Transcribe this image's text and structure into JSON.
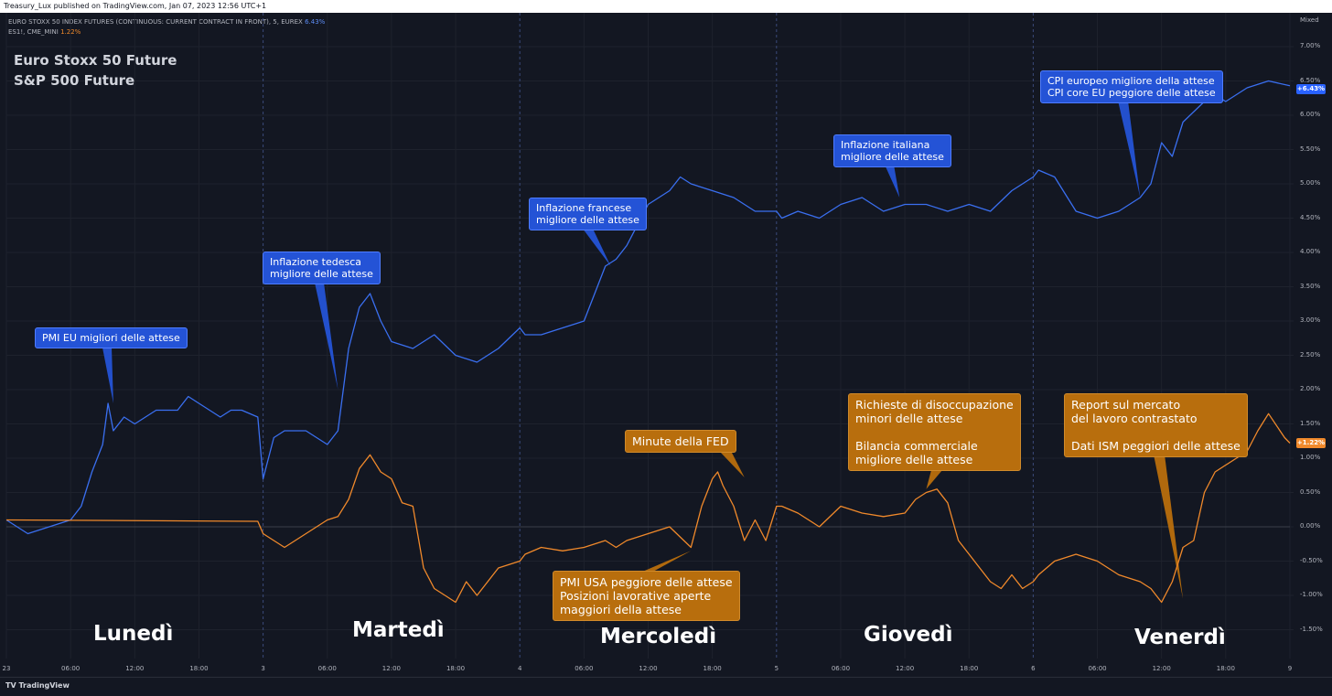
{
  "header": {
    "published_text": "Treasury_Lux published on TradingView.com, Jan 07, 2023 12:56 UTC+1"
  },
  "legend": {
    "line1_label": "EURO STOXX 50 INDEX FUTURES (CONTINUOUS: CURRENT CONTRACT IN FRONT), 5, EUREX",
    "line1_value": "6.43%",
    "line2_label": "ES1!, CME_MINI",
    "line2_value": "1.22%"
  },
  "titles": {
    "blue": "Euro Stoxx 50 Future",
    "orange": "S&P 500 Future"
  },
  "colors": {
    "blue": "#3a6ff0",
    "orange": "#f0892b",
    "background": "#131722"
  },
  "axis": {
    "mode_label": "Mixed",
    "blue_badge": "+6.43%",
    "orange_badge": "+1.22%"
  },
  "days": [
    "Lunedì",
    "Martedì",
    "Mercoledì",
    "Giovedì",
    "Venerdì"
  ],
  "callouts": {
    "pmi_eu": "PMI EU migliori delle attese",
    "infl_de": "Inflazione tedesca\nmigliore delle attese",
    "infl_fr": "Inflazione francese\nmigliore delle attese",
    "infl_it": "Inflazione italiana\nmigliore delle attese",
    "cpi_eu": "CPI europeo migliore della attese\nCPI core EU peggiore delle attese",
    "fed": "Minute della FED",
    "pmi_usa": "PMI USA peggiore delle attese\nPosizioni lavorative aperte\nmaggiori della attese",
    "jobless": "Richieste di disoccupazione\nminori delle attese\n\nBilancia commerciale\nmigliore delle attese",
    "labor": "Report sul mercato\ndel lavoro contrastato\n\nDati ISM peggiori delle attese"
  },
  "footer": {
    "brand": "TradingView"
  },
  "chart_data": {
    "type": "line",
    "title": "",
    "xlabel": "",
    "ylabel": "",
    "ylim": [
      -1.75,
      7.25
    ],
    "y_ticks": [
      "7.00%",
      "6.50%",
      "6.00%",
      "5.50%",
      "5.00%",
      "4.50%",
      "4.00%",
      "3.50%",
      "3.00%",
      "2.50%",
      "2.00%",
      "1.50%",
      "1.00%",
      "0.50%",
      "0.00%",
      "-0.50%",
      "-1.00%",
      "-1.50%"
    ],
    "x_ticks": [
      "23",
      "06:00",
      "12:00",
      "18:00",
      "3",
      "06:00",
      "12:00",
      "18:00",
      "4",
      "06:00",
      "12:00",
      "18:00",
      "5",
      "06:00",
      "12:00",
      "18:00",
      "6",
      "06:00",
      "12:00",
      "18:00",
      "9"
    ],
    "x_unit": "hours since Jan 2 00:00 (trading-time axis)",
    "series": [
      {
        "name": "Euro Stoxx 50 Future",
        "x": [
          0,
          2,
          4,
          6,
          7,
          8,
          9,
          9.5,
          10,
          11,
          12,
          13,
          14,
          16,
          17,
          18,
          20,
          21,
          22,
          23.5,
          24,
          25,
          26,
          28,
          30,
          31,
          32,
          33,
          34,
          35,
          36,
          38,
          40,
          42,
          44,
          46,
          48,
          48.5,
          50,
          52,
          54,
          56,
          57,
          58,
          60,
          62,
          63,
          64,
          66,
          68,
          69,
          70,
          72,
          72.5,
          74,
          76,
          78,
          80,
          82,
          84,
          86,
          88,
          90,
          92,
          94,
          96,
          96.5,
          98,
          100,
          102,
          104,
          106,
          107,
          108,
          109,
          110,
          112,
          113,
          114,
          116,
          118,
          120
        ],
        "values": [
          0.1,
          -0.1,
          0.0,
          0.1,
          0.3,
          0.8,
          1.2,
          1.8,
          1.4,
          1.6,
          1.5,
          1.6,
          1.7,
          1.7,
          1.9,
          1.8,
          1.6,
          1.7,
          1.7,
          1.6,
          0.7,
          1.3,
          1.4,
          1.4,
          1.2,
          1.4,
          2.6,
          3.2,
          3.4,
          3.0,
          2.7,
          2.6,
          2.8,
          2.5,
          2.4,
          2.6,
          2.9,
          2.8,
          2.8,
          2.9,
          3.0,
          3.8,
          3.9,
          4.1,
          4.7,
          4.9,
          5.1,
          5.0,
          4.9,
          4.8,
          4.7,
          4.6,
          4.6,
          4.5,
          4.6,
          4.5,
          4.7,
          4.8,
          4.6,
          4.7,
          4.7,
          4.6,
          4.7,
          4.6,
          4.9,
          5.1,
          5.2,
          5.1,
          4.6,
          4.5,
          4.6,
          4.8,
          5.0,
          5.6,
          5.4,
          5.9,
          6.2,
          6.3,
          6.2,
          6.4,
          6.5,
          6.43
        ]
      },
      {
        "name": "S&P 500 Future",
        "x": [
          0,
          23.5,
          24,
          26,
          28,
          30,
          31,
          32,
          33,
          34,
          35,
          36,
          37,
          38,
          39,
          40,
          41,
          42,
          43,
          44,
          46,
          48,
          48.5,
          50,
          52,
          54,
          56,
          57,
          58,
          60,
          62,
          64,
          65,
          66,
          66.5,
          67,
          68,
          69,
          70,
          71,
          72,
          72.5,
          74,
          76,
          78,
          80,
          82,
          84,
          85,
          86,
          87,
          88,
          89,
          90,
          91,
          92,
          93,
          94,
          95,
          96,
          96.5,
          98,
          100,
          102,
          104,
          106,
          107,
          108,
          109,
          110,
          111,
          112,
          113,
          114,
          116,
          117,
          118,
          119.5,
          120
        ],
        "values": [
          0.1,
          0.08,
          -0.1,
          -0.3,
          -0.1,
          0.1,
          0.15,
          0.4,
          0.85,
          1.05,
          0.8,
          0.7,
          0.35,
          0.3,
          -0.6,
          -0.9,
          -1.0,
          -1.1,
          -0.8,
          -1.0,
          -0.6,
          -0.5,
          -0.4,
          -0.3,
          -0.35,
          -0.3,
          -0.2,
          -0.3,
          -0.2,
          -0.1,
          0.0,
          -0.3,
          0.3,
          0.7,
          0.8,
          0.6,
          0.3,
          -0.2,
          0.1,
          -0.2,
          0.3,
          0.3,
          0.2,
          0.0,
          0.3,
          0.2,
          0.15,
          0.2,
          0.4,
          0.5,
          0.55,
          0.35,
          -0.2,
          -0.4,
          -0.6,
          -0.8,
          -0.9,
          -0.7,
          -0.9,
          -0.8,
          -0.7,
          -0.5,
          -0.4,
          -0.5,
          -0.7,
          -0.8,
          -0.9,
          -1.1,
          -0.8,
          -0.3,
          -0.2,
          0.5,
          0.8,
          0.9,
          1.1,
          1.4,
          1.65,
          1.3,
          1.22
        ]
      }
    ],
    "annotations": [
      "PMI EU migliori delle attese",
      "Inflazione tedesca migliore delle attese",
      "Inflazione francese migliore delle attese",
      "Inflazione italiana migliore delle attese",
      "CPI europeo migliore della attese / CPI core EU peggiore delle attese",
      "Minute della FED",
      "PMI USA peggiore delle attese / Posizioni lavorative aperte maggiori della attese",
      "Richieste di disoccupazione minori delle attese / Bilancia commerciale migliore delle attese",
      "Report sul mercato del lavoro contrastato / Dati ISM peggiori delle attese"
    ],
    "grid": true,
    "legend": "top-left"
  }
}
